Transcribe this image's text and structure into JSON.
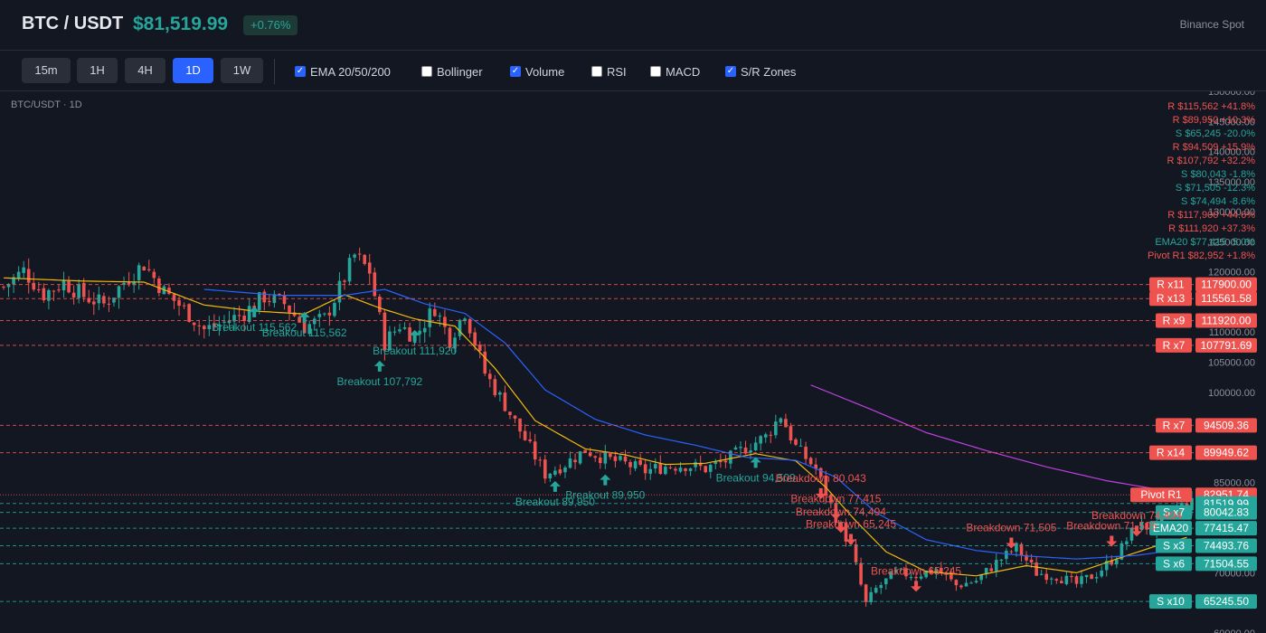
{
  "header": {
    "pair": "BTC / USDT",
    "price": "$81,519.99",
    "change": "+0.76%",
    "exchange": "Binance Spot"
  },
  "toolbar": {
    "timeframes": [
      {
        "label": "15m",
        "active": false
      },
      {
        "label": "1H",
        "active": false
      },
      {
        "label": "4H",
        "active": false
      },
      {
        "label": "1D",
        "active": true
      },
      {
        "label": "1W",
        "active": false
      }
    ],
    "indicators": [
      {
        "label": "EMA 20/50/200",
        "checked": true
      },
      {
        "label": "Bollinger",
        "checked": false
      },
      {
        "label": "Volume",
        "checked": true
      },
      {
        "label": "RSI",
        "checked": false
      },
      {
        "label": "MACD",
        "checked": false
      },
      {
        "label": "S/R Zones",
        "checked": true
      }
    ]
  },
  "chart": {
    "title": "BTC/USDT · 1D",
    "axis_ticks": [
      "150000.00",
      "145000.00",
      "140000.00",
      "135000.00",
      "130000.00",
      "125000.00",
      "120000.00",
      "115000.00",
      "110000.00",
      "105000.00",
      "100000.00",
      "95000.00",
      "90000.00",
      "85000.00",
      "80000.00",
      "75000.00",
      "70000.00",
      "65000.00",
      "60000.00"
    ],
    "colors": {
      "up": "#26a69a",
      "down": "#ef5350",
      "resistance": "#ef5350",
      "support": "#26a69a",
      "ema20": "#f0b90b",
      "ema50": "#2962ff",
      "ema200": "#c040e0"
    },
    "legend_lines": [
      {
        "text": "R $115,562 +41.8%",
        "color": "#ef5350"
      },
      {
        "text": "R $89,950 +10.3%",
        "color": "#ef5350"
      },
      {
        "text": "S $65,245 -20.0%",
        "color": "#26a69a"
      },
      {
        "text": "R $94,509 +15.9%",
        "color": "#ef5350"
      },
      {
        "text": "R $107,792 +32.2%",
        "color": "#ef5350"
      },
      {
        "text": "S $80,043 -1.8%",
        "color": "#26a69a"
      },
      {
        "text": "S $71,505 -12.3%",
        "color": "#26a69a"
      },
      {
        "text": "S $74,494 -8.6%",
        "color": "#26a69a"
      },
      {
        "text": "R $117,900 +44.6%",
        "color": "#ef5350"
      },
      {
        "text": "R $111,920 +37.3%",
        "color": "#ef5350"
      },
      {
        "text": "EMA20 $77,415 -5.0%",
        "color": "#26a69a"
      },
      {
        "text": "Pivot R1 $82,952 +1.8%",
        "color": "#ef5350"
      }
    ],
    "levels": [
      {
        "tag": "R x11",
        "value": 117900.0,
        "label": "117900.00",
        "kind": "R"
      },
      {
        "tag": "R x13",
        "value": 115561.58,
        "label": "115561.58",
        "kind": "R"
      },
      {
        "tag": "R x9",
        "value": 111920.0,
        "label": "111920.00",
        "kind": "R"
      },
      {
        "tag": "R x7",
        "value": 107791.69,
        "label": "107791.69",
        "kind": "R"
      },
      {
        "tag": "R x7",
        "value": 94509.36,
        "label": "94509.36",
        "kind": "R"
      },
      {
        "tag": "R x14",
        "value": 89949.62,
        "label": "89949.62",
        "kind": "R"
      },
      {
        "tag": "Pivot R1",
        "value": 82951.74,
        "label": "82951.74",
        "kind": "P"
      },
      {
        "tag": "",
        "value": 81519.99,
        "label": "81519.99",
        "kind": "C"
      },
      {
        "tag": "S x7",
        "value": 80042.83,
        "label": "80042.83",
        "kind": "S"
      },
      {
        "tag": "EMA20",
        "value": 77415.47,
        "label": "77415.47",
        "kind": "S"
      },
      {
        "tag": "S x3",
        "value": 74493.76,
        "label": "74493.76",
        "kind": "S"
      },
      {
        "tag": "S x6",
        "value": 71504.55,
        "label": "71504.55",
        "kind": "S"
      },
      {
        "tag": "S x10",
        "value": 65245.5,
        "label": "65245.50",
        "kind": "S"
      }
    ],
    "signals": [
      {
        "text": "Breakout 115,562",
        "type": "up",
        "bar": 50,
        "price": 113200
      },
      {
        "text": "Breakout 115,562",
        "type": "up",
        "bar": 60,
        "price": 112300
      },
      {
        "text": "Breakout 111,920",
        "type": "up",
        "bar": 82,
        "price": 109300
      },
      {
        "text": "Breakout 107,792",
        "type": "up",
        "bar": 75,
        "price": 104200
      },
      {
        "text": "Breakout 89,950",
        "type": "up",
        "bar": 110,
        "price": 84200
      },
      {
        "text": "Breakout 89,950",
        "type": "up",
        "bar": 120,
        "price": 85300
      },
      {
        "text": "Breakout 94,509",
        "type": "up",
        "bar": 150,
        "price": 88200
      },
      {
        "text": "Breakdown 80,043",
        "type": "down",
        "bar": 163,
        "price": 83300
      },
      {
        "text": "Breakdown 77,415",
        "type": "down",
        "bar": 166,
        "price": 79900
      },
      {
        "text": "Breakdown 74,494",
        "type": "down",
        "bar": 167,
        "price": 77700
      },
      {
        "text": "Breakdown 65,245",
        "type": "down",
        "bar": 169,
        "price": 75700
      },
      {
        "text": "Breakdown 65,245",
        "type": "down",
        "bar": 182,
        "price": 67900
      },
      {
        "text": "Breakdown 71,505",
        "type": "down",
        "bar": 201,
        "price": 75100
      },
      {
        "text": "Breakdown 74,494",
        "type": "down",
        "bar": 226,
        "price": 77100
      },
      {
        "text": "Breakdown 71,505",
        "type": "down",
        "bar": 221,
        "price": 75400
      }
    ]
  },
  "chart_data": {
    "type": "candlestick",
    "title": "BTC/USDT · 1D",
    "ylim": [
      60000,
      150000
    ],
    "series": [
      {
        "name": "EMA20",
        "anchors": [
          [
            0,
            119000
          ],
          [
            15,
            118500
          ],
          [
            28,
            118300
          ],
          [
            40,
            114500
          ],
          [
            50,
            113500
          ],
          [
            60,
            113000
          ],
          [
            68,
            116200
          ],
          [
            75,
            114000
          ],
          [
            82,
            112200
          ],
          [
            90,
            111000
          ],
          [
            98,
            104000
          ],
          [
            106,
            95300
          ],
          [
            116,
            90600
          ],
          [
            124,
            89600
          ],
          [
            132,
            88000
          ],
          [
            140,
            88200
          ],
          [
            150,
            89800
          ],
          [
            158,
            88600
          ],
          [
            164,
            84200
          ],
          [
            170,
            78600
          ],
          [
            176,
            73500
          ],
          [
            184,
            70200
          ],
          [
            194,
            69500
          ],
          [
            204,
            71200
          ],
          [
            214,
            70000
          ],
          [
            222,
            72300
          ],
          [
            230,
            74500
          ],
          [
            236,
            75900
          ]
        ]
      },
      {
        "name": "EMA50",
        "anchors": [
          [
            40,
            117100
          ],
          [
            55,
            116100
          ],
          [
            68,
            116100
          ],
          [
            76,
            117100
          ],
          [
            84,
            114700
          ],
          [
            92,
            113100
          ],
          [
            100,
            108200
          ],
          [
            108,
            100400
          ],
          [
            118,
            95500
          ],
          [
            128,
            92900
          ],
          [
            138,
            91200
          ],
          [
            148,
            89200
          ],
          [
            158,
            88700
          ],
          [
            166,
            85900
          ],
          [
            174,
            80000
          ],
          [
            184,
            75500
          ],
          [
            194,
            73700
          ],
          [
            204,
            72800
          ],
          [
            214,
            72300
          ],
          [
            226,
            72900
          ],
          [
            236,
            74000
          ]
        ]
      },
      {
        "name": "EMA200",
        "anchors": [
          [
            161,
            101200
          ],
          [
            172,
            97500
          ],
          [
            184,
            93300
          ],
          [
            196,
            90300
          ],
          [
            208,
            87600
          ],
          [
            220,
            85300
          ],
          [
            230,
            83900
          ],
          [
            236,
            83300
          ]
        ]
      }
    ],
    "candle_anchors": [
      [
        0,
        117500
      ],
      [
        4,
        120200
      ],
      [
        8,
        116300
      ],
      [
        12,
        118300
      ],
      [
        16,
        116000
      ],
      [
        20,
        114600
      ],
      [
        25,
        119200
      ],
      [
        28,
        121300
      ],
      [
        32,
        116700
      ],
      [
        36,
        113800
      ],
      [
        40,
        110400
      ],
      [
        44,
        111600
      ],
      [
        48,
        113200
      ],
      [
        52,
        115900
      ],
      [
        56,
        114700
      ],
      [
        60,
        110900
      ],
      [
        64,
        112200
      ],
      [
        67,
        117200
      ],
      [
        70,
        122700
      ],
      [
        73,
        120100
      ],
      [
        76,
        108200
      ],
      [
        79,
        111200
      ],
      [
        82,
        109200
      ],
      [
        86,
        114100
      ],
      [
        89,
        108800
      ],
      [
        92,
        113500
      ],
      [
        96,
        103200
      ],
      [
        100,
        97900
      ],
      [
        104,
        92200
      ],
      [
        108,
        86400
      ],
      [
        112,
        88100
      ],
      [
        116,
        90400
      ],
      [
        120,
        89000
      ],
      [
        124,
        88100
      ],
      [
        128,
        86900
      ],
      [
        132,
        87700
      ],
      [
        136,
        87900
      ],
      [
        140,
        87300
      ],
      [
        144,
        88600
      ],
      [
        148,
        90800
      ],
      [
        152,
        92600
      ],
      [
        155,
        96200
      ],
      [
        158,
        90900
      ],
      [
        162,
        87300
      ],
      [
        166,
        79300
      ],
      [
        169,
        74200
      ],
      [
        172,
        64800
      ],
      [
        174,
        67300
      ],
      [
        178,
        70000
      ],
      [
        182,
        69600
      ],
      [
        186,
        70700
      ],
      [
        190,
        67900
      ],
      [
        194,
        68700
      ],
      [
        198,
        71700
      ],
      [
        202,
        74200
      ],
      [
        206,
        70000
      ],
      [
        210,
        69500
      ],
      [
        214,
        68100
      ],
      [
        218,
        69900
      ],
      [
        222,
        72900
      ],
      [
        226,
        77900
      ],
      [
        230,
        77300
      ],
      [
        234,
        80900
      ],
      [
        237,
        81520
      ]
    ]
  }
}
